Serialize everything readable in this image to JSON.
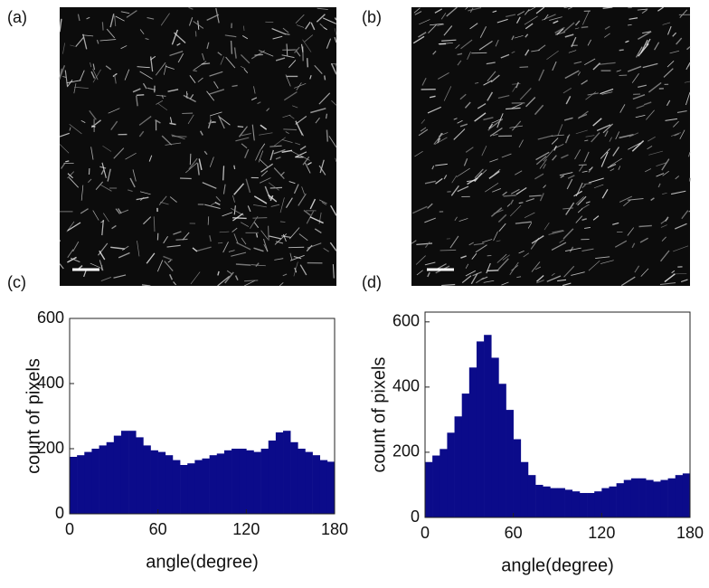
{
  "panel_labels": [
    "(a)",
    "(b)",
    "(c)",
    "(d)"
  ],
  "chart_data": [
    {
      "type": "histogram",
      "xlabel": "angle(degree)",
      "ylabel": "count of pixels",
      "color": "#0b0b8a",
      "bins": [
        0,
        5,
        10,
        15,
        20,
        25,
        30,
        35,
        40,
        45,
        50,
        55,
        60,
        65,
        70,
        75,
        80,
        85,
        90,
        95,
        100,
        105,
        110,
        115,
        120,
        125,
        130,
        135,
        140,
        145,
        150,
        155,
        160,
        165,
        170,
        175,
        180
      ],
      "values": [
        175,
        180,
        190,
        200,
        210,
        220,
        240,
        255,
        255,
        235,
        210,
        195,
        190,
        180,
        165,
        150,
        155,
        165,
        170,
        180,
        185,
        195,
        200,
        200,
        195,
        190,
        200,
        225,
        250,
        255,
        220,
        200,
        190,
        180,
        165,
        160
      ],
      "xlim": [
        0,
        180
      ],
      "ylim": [
        0,
        600
      ],
      "xticks": [
        0,
        60,
        120,
        180
      ],
      "yticks": [
        0,
        200,
        400,
        600
      ]
    },
    {
      "type": "histogram",
      "xlabel": "angle(degree)",
      "ylabel": "count of pixels",
      "color": "#0b0b8a",
      "bins": [
        0,
        5,
        10,
        15,
        20,
        25,
        30,
        35,
        40,
        45,
        50,
        55,
        60,
        65,
        70,
        75,
        80,
        85,
        90,
        95,
        100,
        105,
        110,
        115,
        120,
        125,
        130,
        135,
        140,
        145,
        150,
        155,
        160,
        165,
        170,
        175,
        180
      ],
      "values": [
        170,
        190,
        210,
        260,
        310,
        380,
        460,
        540,
        560,
        490,
        410,
        330,
        240,
        170,
        130,
        100,
        95,
        90,
        90,
        85,
        80,
        75,
        75,
        80,
        90,
        95,
        105,
        115,
        120,
        120,
        115,
        110,
        115,
        120,
        130,
        135
      ],
      "xlim": [
        0,
        180
      ],
      "ylim": [
        0,
        630
      ],
      "xticks": [
        0,
        60,
        120,
        180
      ],
      "yticks": [
        0,
        200,
        400,
        600
      ]
    }
  ]
}
